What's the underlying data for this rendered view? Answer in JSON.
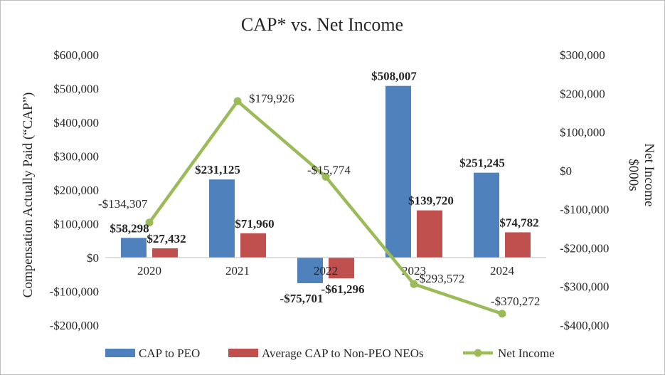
{
  "chart_data": {
    "type": "bar",
    "title": "CAP* vs. Net Income",
    "categories": [
      "2020",
      "2021",
      "2022",
      "2023",
      "2024"
    ],
    "ylabel": "Compensation Actually Paid (“CAP”)",
    "y2label_line1": "Net Income",
    "y2label_line2": "$000s",
    "ylim": [
      -200000,
      600000
    ],
    "y2lim": [
      -400000,
      300000
    ],
    "yticks": [
      {
        "value": 600000,
        "label": "$600,000"
      },
      {
        "value": 500000,
        "label": "$500,000"
      },
      {
        "value": 400000,
        "label": "$400,000"
      },
      {
        "value": 300000,
        "label": "$300,000"
      },
      {
        "value": 200000,
        "label": "$200,000"
      },
      {
        "value": 100000,
        "label": "$100,000"
      },
      {
        "value": 0,
        "label": "$0"
      },
      {
        "value": -100000,
        "label": "-$100,000"
      },
      {
        "value": -200000,
        "label": "-$200,000"
      }
    ],
    "y2ticks": [
      {
        "value": 300000,
        "label": "$300,000"
      },
      {
        "value": 200000,
        "label": "$200,000"
      },
      {
        "value": 100000,
        "label": "$100,000"
      },
      {
        "value": 0,
        "label": "$0"
      },
      {
        "value": -100000,
        "label": "-$100,000"
      },
      {
        "value": -200000,
        "label": "-$200,000"
      },
      {
        "value": -300000,
        "label": "-$300,000"
      },
      {
        "value": -400000,
        "label": "-$400,000"
      }
    ],
    "series": [
      {
        "name": "CAP to PEO",
        "kind": "bar",
        "axis": "left",
        "color": "#4f81bd",
        "values": [
          58298,
          231125,
          -75701,
          508007,
          251245
        ],
        "labels": [
          "$58,298",
          "$231,125",
          "-$75,701",
          "$508,007",
          "$251,245"
        ]
      },
      {
        "name": "Average CAP to Non-PEO NEOs",
        "kind": "bar",
        "axis": "left",
        "color": "#c0504d",
        "values": [
          27432,
          71960,
          -61296,
          139720,
          74782
        ],
        "labels": [
          "$27,432",
          "$71,960",
          "-$61,296",
          "$139,720",
          "$74,782"
        ]
      },
      {
        "name": "Net Income",
        "kind": "line",
        "axis": "right",
        "color": "#9bbb59",
        "values": [
          -134307,
          179926,
          -15774,
          -293572,
          -370272
        ],
        "labels": [
          "-$134,307",
          "$179,926",
          "-$15,774",
          "-$293,572",
          "-$370,272"
        ]
      }
    ],
    "legend_position": "bottom",
    "grid": false
  }
}
